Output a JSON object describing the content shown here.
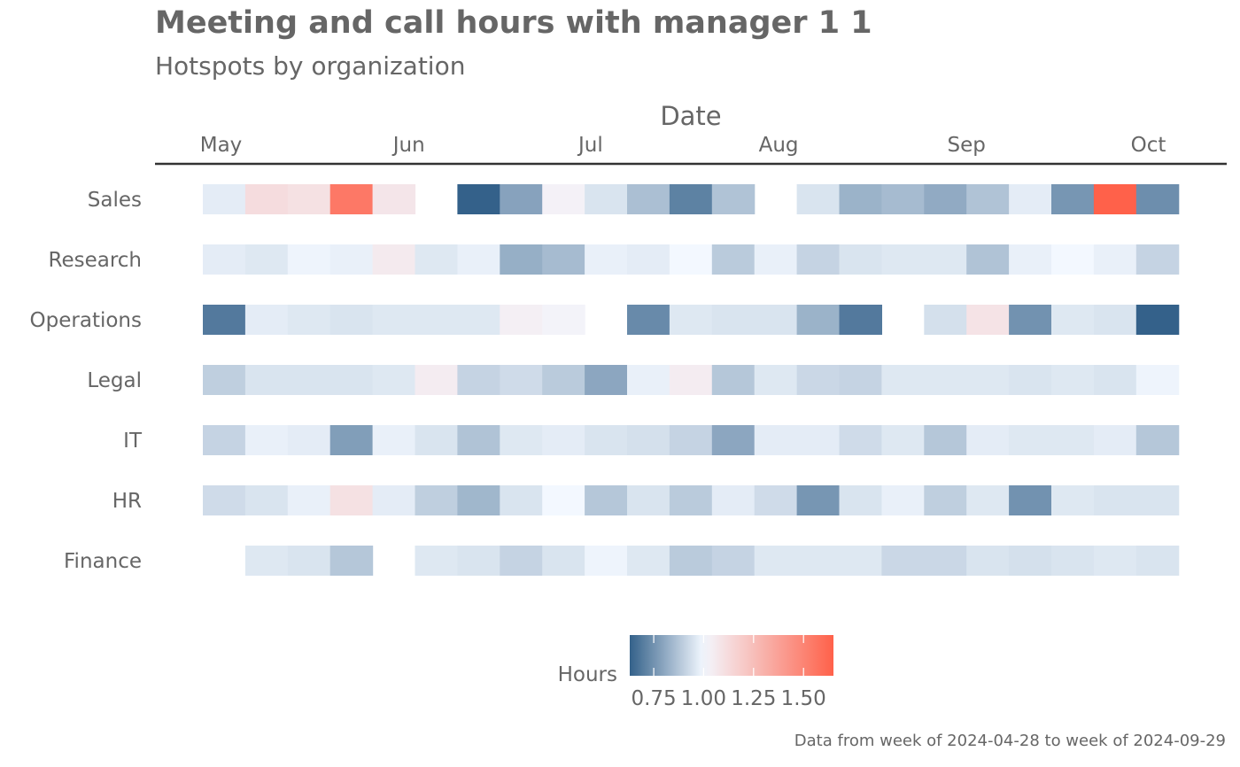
{
  "title": "Meeting and call hours with manager 1 1",
  "subtitle": "Hotspots by organization",
  "caption": "Data from week of 2024-04-28 to week of 2024-09-29",
  "colors": {
    "low": "#34618a",
    "mid": "#f3f8ff",
    "high": "#ff614a",
    "axis_line": "#333333",
    "text": "#666666"
  },
  "chart_data": {
    "type": "heatmap",
    "xlabel": "Date",
    "ylabel": "",
    "x_axis_position": "top",
    "x_tick_labels": [
      "May",
      "Jun",
      "Jul",
      "Aug",
      "Sep",
      "Oct"
    ],
    "x_tick_dates": [
      "2024-05-01",
      "2024-06-01",
      "2024-07-01",
      "2024-08-01",
      "2024-09-01",
      "2024-10-01"
    ],
    "weeks": [
      "2024-04-28",
      "2024-05-05",
      "2024-05-12",
      "2024-05-19",
      "2024-05-26",
      "2024-06-02",
      "2024-06-09",
      "2024-06-16",
      "2024-06-23",
      "2024-06-30",
      "2024-07-07",
      "2024-07-14",
      "2024-07-21",
      "2024-07-28",
      "2024-08-04",
      "2024-08-11",
      "2024-08-18",
      "2024-08-25",
      "2024-09-01",
      "2024-09-08",
      "2024-09-15",
      "2024-09-22",
      "2024-09-29"
    ],
    "organizations": [
      "Sales",
      "Research",
      "Operations",
      "Legal",
      "IT",
      "HR",
      "Finance"
    ],
    "values": {
      "Sales": [
        0.97,
        1.12,
        1.1,
        1.55,
        1.08,
        null,
        0.63,
        0.79,
        1.03,
        0.95,
        0.86,
        0.71,
        0.87,
        null,
        0.95,
        0.83,
        0.85,
        0.81,
        0.87,
        0.97,
        0.76,
        1.65,
        0.74
      ],
      "Research": [
        0.97,
        0.96,
        0.99,
        0.98,
        1.06,
        0.96,
        0.98,
        0.82,
        0.85,
        0.98,
        0.97,
        1.0,
        0.89,
        0.98,
        0.91,
        0.95,
        0.96,
        0.96,
        0.87,
        0.98,
        1.0,
        0.98,
        0.91
      ],
      "Operations": [
        0.69,
        0.97,
        0.96,
        0.95,
        0.96,
        0.96,
        0.96,
        1.04,
        1.02,
        null,
        0.73,
        0.96,
        0.95,
        0.95,
        0.83,
        0.69,
        null,
        0.94,
        1.09,
        0.75,
        0.96,
        0.95,
        0.63
      ],
      "Legal": [
        0.9,
        0.95,
        0.95,
        0.95,
        0.96,
        1.05,
        0.91,
        0.93,
        0.89,
        0.8,
        0.98,
        1.05,
        0.88,
        0.96,
        0.92,
        0.91,
        0.96,
        0.96,
        0.96,
        0.95,
        0.96,
        0.95,
        0.99
      ],
      "IT": [
        0.91,
        0.98,
        0.97,
        0.78,
        0.98,
        0.95,
        0.87,
        0.96,
        0.97,
        0.95,
        0.94,
        0.91,
        0.8,
        0.97,
        0.97,
        0.93,
        0.96,
        0.88,
        0.97,
        0.96,
        0.96,
        0.97,
        0.88
      ],
      "HR": [
        0.93,
        0.95,
        0.98,
        1.1,
        0.97,
        0.9,
        0.84,
        0.95,
        1.0,
        0.88,
        0.95,
        0.89,
        0.97,
        0.93,
        0.76,
        0.95,
        0.98,
        0.9,
        0.96,
        0.75,
        0.96,
        0.95,
        0.95
      ],
      "Finance": [
        null,
        0.96,
        0.95,
        0.88,
        null,
        0.96,
        0.95,
        0.91,
        0.95,
        0.99,
        0.96,
        0.89,
        0.91,
        0.96,
        0.96,
        0.96,
        0.92,
        0.92,
        0.95,
        0.94,
        0.95,
        0.96,
        0.95
      ]
    },
    "legend": {
      "title": "Hours",
      "position": "bottom",
      "range": [
        0.63,
        1.65
      ],
      "midpoint": 1.0,
      "breaks": [
        0.75,
        1.0,
        1.25,
        1.5
      ],
      "break_labels": [
        "0.75",
        "1.00",
        "1.25",
        "1.50"
      ]
    },
    "grid": false
  }
}
